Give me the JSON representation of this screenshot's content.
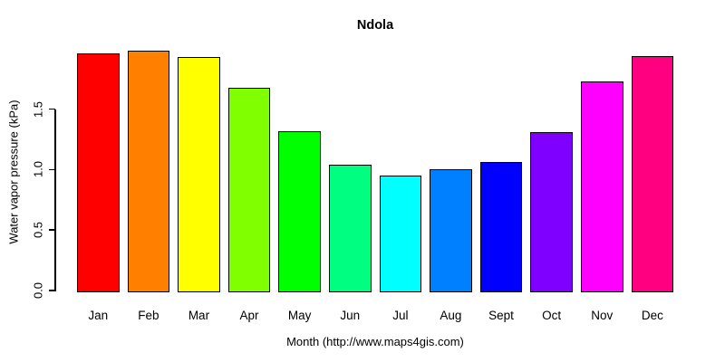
{
  "figure": {
    "title": "Ndola",
    "x_axis_label": "Month (http://www.maps4gis.com)",
    "y_axis_label": "Water vapor pressure (kPa)"
  },
  "chart_data": {
    "type": "bar",
    "title": "Ndola",
    "categories": [
      "Jan",
      "Feb",
      "Mar",
      "Apr",
      "May",
      "Jun",
      "Jul",
      "Aug",
      "Sept",
      "Oct",
      "Nov",
      "Dec"
    ],
    "values": [
      1.96,
      1.98,
      1.93,
      1.68,
      1.32,
      1.04,
      0.95,
      1.0,
      1.06,
      1.31,
      1.73,
      1.94
    ],
    "bar_colors": [
      "#FF0000",
      "#FF8000",
      "#FFFF00",
      "#80FF00",
      "#00FF00",
      "#00FF80",
      "#00FFFF",
      "#0080FF",
      "#0000FF",
      "#8000FF",
      "#FF00FF",
      "#FF0080"
    ],
    "bar_border_color": "#000000",
    "xlabel": "Month (http://www.maps4gis.com)",
    "ylabel": "Water vapor pressure (kPa)",
    "ylim": [
      0,
      2.0
    ],
    "yticks": [
      0.0,
      0.5,
      1.0,
      1.5
    ],
    "ytick_labels": [
      "0.0",
      "0.5",
      "1.0",
      "1.5"
    ],
    "grid": false,
    "legend": false,
    "background": "#FFFFFF"
  }
}
